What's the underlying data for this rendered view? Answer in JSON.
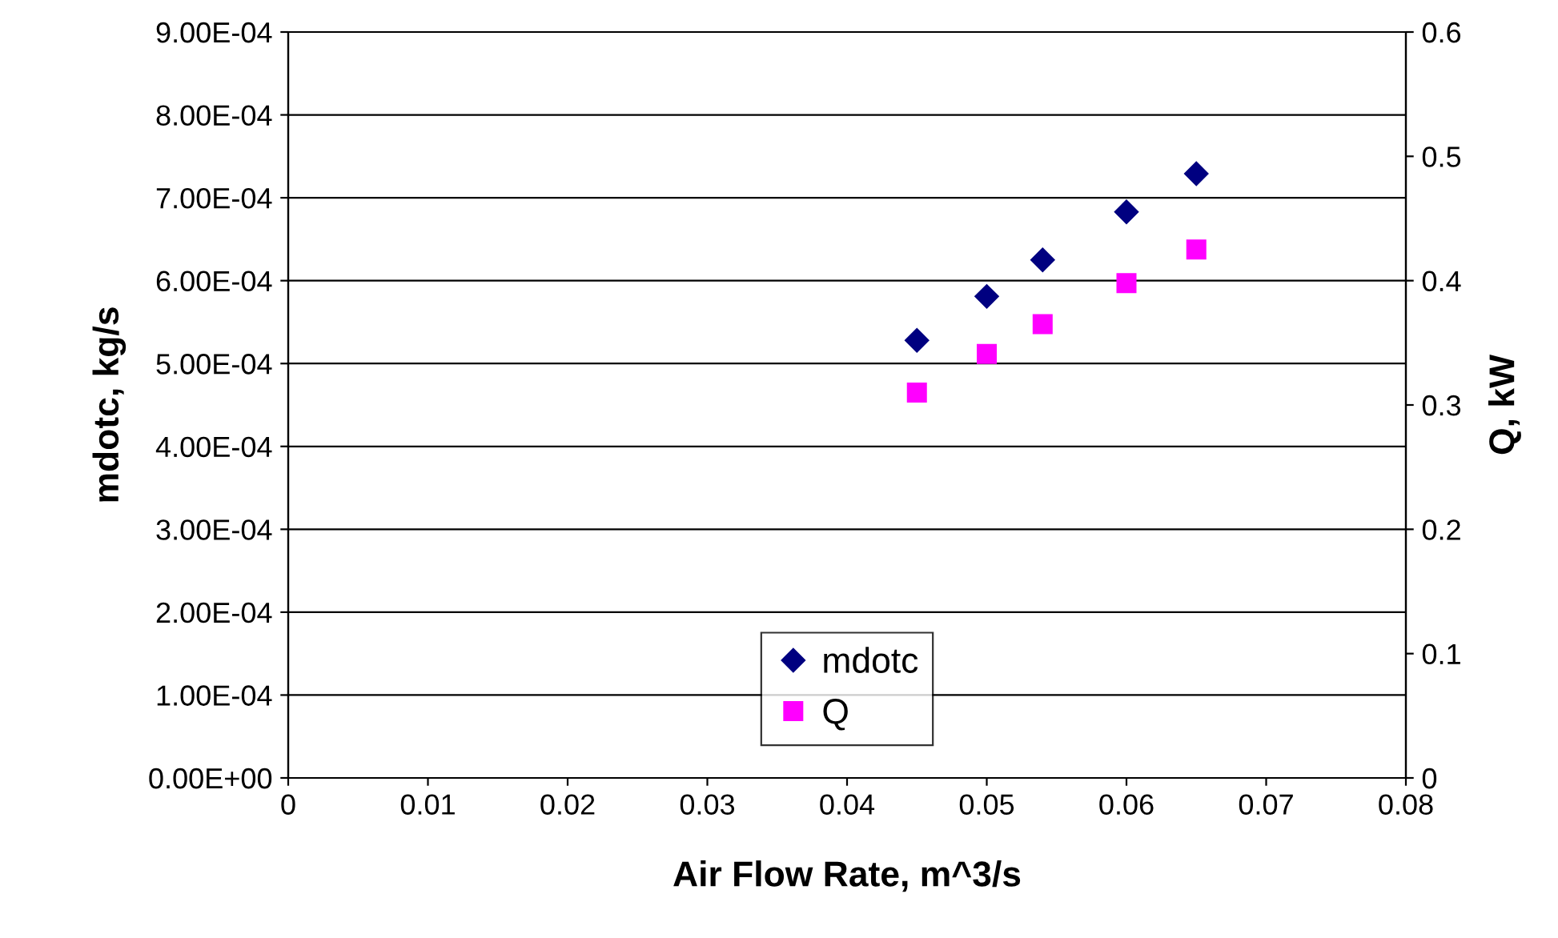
{
  "chart_data": {
    "type": "scatter",
    "xlabel": "Air Flow Rate, m^3/s",
    "ylabel": "mdotc, kg/s",
    "y2label": "Q, kW",
    "x": [
      0.045,
      0.05,
      0.054,
      0.06,
      0.065
    ],
    "series": [
      {
        "name": "mdotc",
        "color": "#000080",
        "marker": "diamond",
        "values": [
          0.000528,
          0.000581,
          0.000625,
          0.000683,
          0.000729
        ]
      },
      {
        "name": "Q",
        "color": "#ff00ff",
        "marker": "square",
        "axis": "y2",
        "values": [
          0.31,
          0.341,
          0.365,
          0.398,
          0.425
        ]
      }
    ],
    "xlim": [
      0,
      0.08
    ],
    "xticks": [
      0,
      0.01,
      0.02,
      0.03,
      0.04,
      0.05,
      0.06,
      0.07,
      0.08
    ],
    "ylim": [
      0,
      0.0009
    ],
    "yticks": [
      {
        "value": 0,
        "label": "0.00E+00"
      },
      {
        "value": 0.0001,
        "label": "1.00E-04"
      },
      {
        "value": 0.0002,
        "label": "2.00E-04"
      },
      {
        "value": 0.0003,
        "label": "3.00E-04"
      },
      {
        "value": 0.0004,
        "label": "4.00E-04"
      },
      {
        "value": 0.0005,
        "label": "5.00E-04"
      },
      {
        "value": 0.0006,
        "label": "6.00E-04"
      },
      {
        "value": 0.0007,
        "label": "7.00E-04"
      },
      {
        "value": 0.0008,
        "label": "8.00E-04"
      },
      {
        "value": 0.0009,
        "label": "9.00E-04"
      }
    ],
    "y2lim": [
      0,
      0.6
    ],
    "y2ticks": [
      0,
      0.1,
      0.2,
      0.3,
      0.4,
      0.5,
      0.6
    ],
    "grid": "y",
    "legend": "bottom"
  }
}
